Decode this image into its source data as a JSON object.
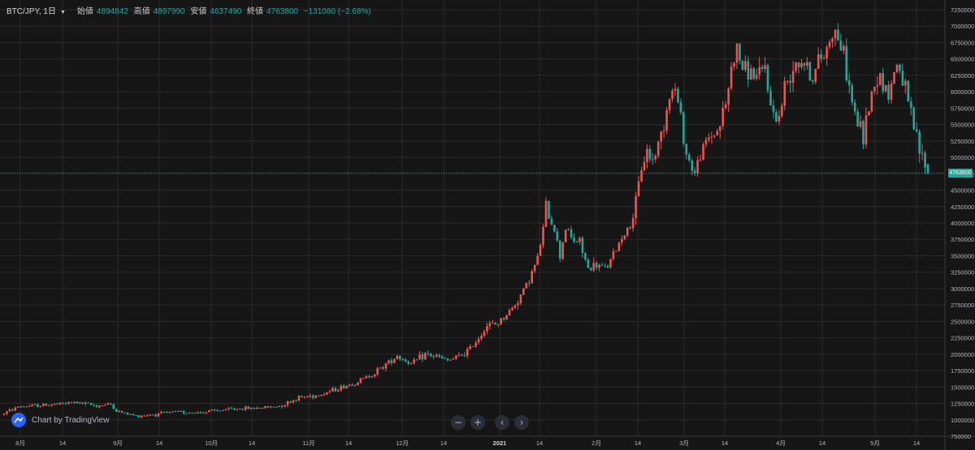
{
  "header": {
    "symbol": "BTC/JPY, 1日",
    "open_label": "始値",
    "open_value": "4894842",
    "high_label": "高値",
    "high_value": "4897990",
    "low_label": "安値",
    "low_value": "4637490",
    "close_label": "終値",
    "close_value": "4763800",
    "change": "−131080 (−2.68%)"
  },
  "watermark": {
    "label": "Chart by TradingView"
  },
  "nav": {
    "zoom_out": "−",
    "zoom_in": "+",
    "left": "‹",
    "right": "›"
  },
  "last_price_label": "4763800",
  "colors": {
    "up": "#ef5350",
    "down": "#26a69a",
    "grid": "#2a2a2a",
    "text": "#b2b5be"
  },
  "chart_data": {
    "type": "candlestick",
    "title": "",
    "symbol": "BTC/JPY",
    "interval": "1日",
    "ylim": [
      750000,
      7250000
    ],
    "y_ticks": [
      750000,
      1000000,
      1250000,
      1500000,
      1750000,
      2000000,
      2250000,
      2500000,
      2750000,
      3000000,
      3250000,
      3500000,
      3750000,
      4000000,
      4250000,
      4500000,
      4750000,
      5000000,
      5250000,
      5500000,
      5750000,
      6000000,
      6250000,
      6500000,
      6750000,
      7000000,
      7250000
    ],
    "x_ticks": [
      "8月",
      "14",
      "9月",
      "14",
      "10月",
      "14",
      "11月",
      "14",
      "12月",
      "14",
      "2021",
      "14",
      "2月",
      "14",
      "3月",
      "14",
      "4月",
      "14",
      "5月",
      "14"
    ],
    "grid": true,
    "last_price": 4763800,
    "anchors": [
      [
        0,
        1100000
      ],
      [
        5,
        1200000
      ],
      [
        12,
        1220000
      ],
      [
        20,
        1240000
      ],
      [
        25,
        1265000
      ],
      [
        33,
        1215000
      ],
      [
        38,
        1240000
      ],
      [
        40,
        1130000
      ],
      [
        47,
        1060000
      ],
      [
        55,
        1090000
      ],
      [
        62,
        1120000
      ],
      [
        69,
        1110000
      ],
      [
        76,
        1140000
      ],
      [
        83,
        1170000
      ],
      [
        90,
        1180000
      ],
      [
        97,
        1200000
      ],
      [
        101,
        1260000
      ],
      [
        105,
        1340000
      ],
      [
        112,
        1380000
      ],
      [
        119,
        1480000
      ],
      [
        126,
        1580000
      ],
      [
        132,
        1720000
      ],
      [
        136,
        1850000
      ],
      [
        140,
        1980000
      ],
      [
        145,
        1850000
      ],
      [
        150,
        2000000
      ],
      [
        155,
        1950000
      ],
      [
        158,
        1900000
      ],
      [
        162,
        1960000
      ],
      [
        166,
        2080000
      ],
      [
        169,
        2260000
      ],
      [
        172,
        2440000
      ],
      [
        175,
        2450000
      ],
      [
        178,
        2560000
      ],
      [
        181,
        2700000
      ],
      [
        184,
        2900000
      ],
      [
        187,
        3150000
      ],
      [
        190,
        3450000
      ],
      [
        192,
        3900000
      ],
      [
        193,
        4250000
      ],
      [
        196,
        3900000
      ],
      [
        198,
        3500000
      ],
      [
        200,
        3950000
      ],
      [
        202,
        3760000
      ],
      [
        205,
        3700000
      ],
      [
        208,
        3300000
      ],
      [
        211,
        3350000
      ],
      [
        214,
        3300000
      ],
      [
        217,
        3500000
      ],
      [
        220,
        3800000
      ],
      [
        223,
        3950000
      ],
      [
        225,
        4280000
      ],
      [
        227,
        4850000
      ],
      [
        229,
        5100000
      ],
      [
        231,
        4950000
      ],
      [
        234,
        5350000
      ],
      [
        237,
        5950000
      ],
      [
        239,
        6050000
      ],
      [
        241,
        5600000
      ],
      [
        243,
        5050000
      ],
      [
        246,
        4750000
      ],
      [
        248,
        5050000
      ],
      [
        251,
        5300000
      ],
      [
        254,
        5400000
      ],
      [
        257,
        5800000
      ],
      [
        259,
        6350000
      ],
      [
        261,
        6650000
      ],
      [
        263,
        6350000
      ],
      [
        266,
        6300000
      ],
      [
        269,
        6200000
      ],
      [
        271,
        6400000
      ],
      [
        273,
        5750000
      ],
      [
        276,
        5600000
      ],
      [
        278,
        6050000
      ],
      [
        280,
        6300000
      ],
      [
        282,
        6500000
      ],
      [
        285,
        6450000
      ],
      [
        288,
        6200000
      ],
      [
        290,
        6450000
      ],
      [
        293,
        6650000
      ],
      [
        295,
        6950000
      ],
      [
        297,
        6850000
      ],
      [
        299,
        6550000
      ],
      [
        301,
        6050000
      ],
      [
        303,
        5650000
      ],
      [
        306,
        5300000
      ],
      [
        308,
        5800000
      ],
      [
        310,
        6150000
      ],
      [
        312,
        6250000
      ],
      [
        315,
        5950000
      ],
      [
        318,
        6450000
      ],
      [
        320,
        6200000
      ],
      [
        322,
        5800000
      ],
      [
        324,
        5450000
      ],
      [
        326,
        5100000
      ],
      [
        328,
        4890000
      ],
      [
        329,
        4760000
      ]
    ]
  }
}
